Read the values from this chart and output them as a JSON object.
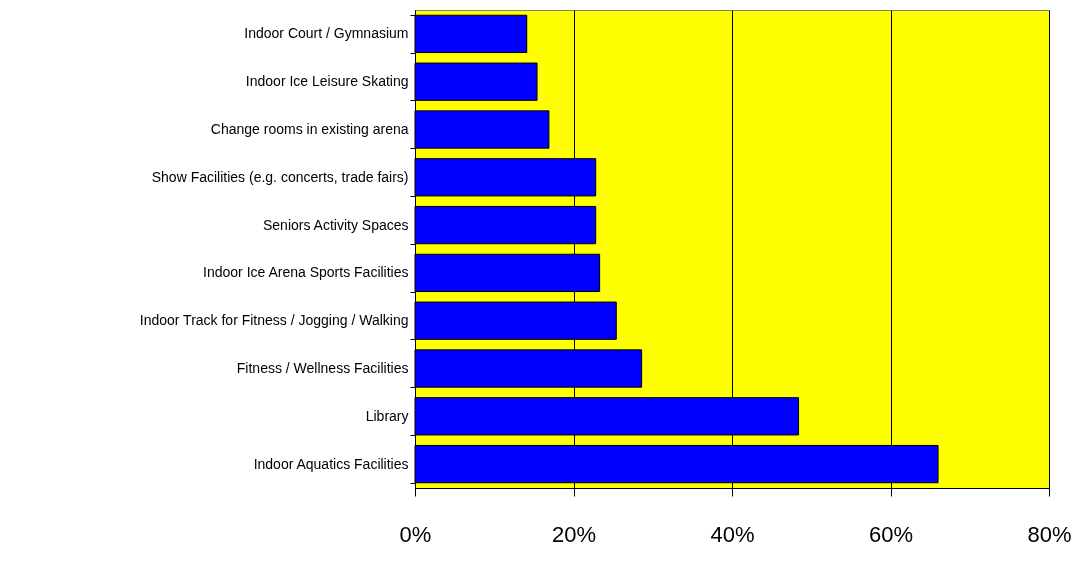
{
  "chart_data": {
    "type": "bar",
    "orientation": "horizontal",
    "categories": [
      "Indoor Court / Gymnasium",
      "Indoor Ice Leisure Skating",
      "Change rooms in existing arena",
      "Show Facilities (e.g. concerts, trade fairs)",
      "Seniors Activity Spaces",
      "Indoor Ice Arena Sports Facilities",
      "Indoor Track for Fitness / Jogging / Walking",
      "Fitness / Wellness Facilities",
      "Library",
      "Indoor Aquatics Facilities"
    ],
    "values": [
      14.1,
      15.4,
      16.9,
      22.8,
      22.8,
      23.3,
      25.4,
      28.6,
      48.4,
      66.0
    ],
    "color": "#0000ff",
    "xlim": [
      0,
      80
    ],
    "xticks": [
      {
        "value": 0,
        "label": "0%"
      },
      {
        "value": 20,
        "label": "20%"
      },
      {
        "value": 40,
        "label": "40%"
      },
      {
        "value": 60,
        "label": "60%"
      },
      {
        "value": 80,
        "label": "80%"
      }
    ],
    "grid": "x"
  }
}
